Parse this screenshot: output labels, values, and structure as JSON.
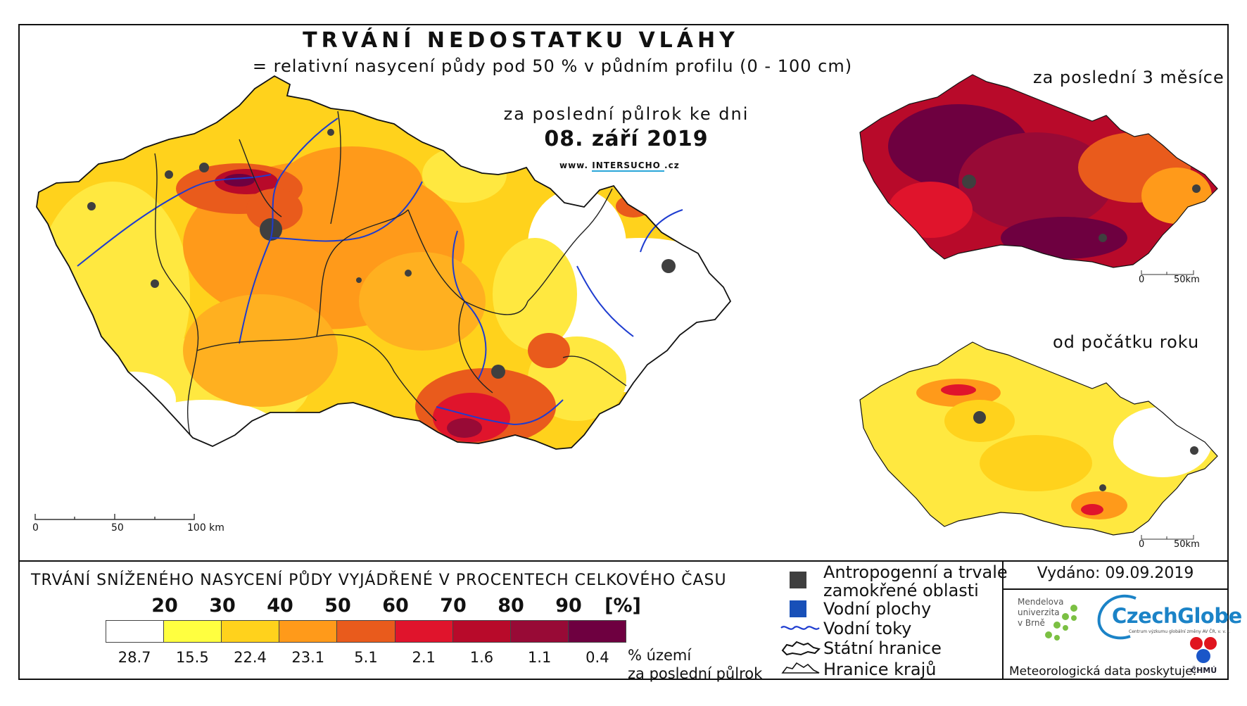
{
  "title": "TRVÁNÍ NEDOSTATKU VLÁHY",
  "subtitle": "= relativní nasycení půdy pod 50 % v půdním profilu (0 - 100 cm)",
  "main_map": {
    "period_label": "za poslední půlrok ke dni",
    "date": "08. září 2019",
    "website_prefix": "www.",
    "website_brand_a": "INTER",
    "website_brand_b": "SUCHO",
    "website_suffix": ".cz",
    "scale_labels": [
      "0",
      "50",
      "100 km"
    ]
  },
  "inset_3months": {
    "label": "za poslední 3 měsíce",
    "scale_labels": [
      "0",
      "50km"
    ]
  },
  "inset_year": {
    "label": "od počátku roku",
    "scale_labels": [
      "0",
      "50km"
    ]
  },
  "legend": {
    "title": "TRVÁNÍ SNÍŽENÉHO NASYCENÍ PŮDY VYJÁDŘENÉ V PROCENTECH CELKOVÉHO ČASU",
    "class_labels": [
      "20",
      "30",
      "40",
      "50",
      "60",
      "70",
      "80",
      "90",
      "[%]"
    ],
    "colors": [
      "#ffffff",
      "#ffff40",
      "#ffd21c",
      "#ff9a1a",
      "#e95b1c",
      "#e0142c",
      "#b80a2a",
      "#980a36",
      "#6e0040"
    ],
    "shares": [
      "28.7",
      "15.5",
      "22.4",
      "23.1",
      "5.1",
      "2.1",
      "1.6",
      "1.1",
      "0.4"
    ],
    "share_note_line1": "% území",
    "share_note_line2": "za poslední půlrok"
  },
  "key": {
    "anthropogenic_line1": "Antropogenní a trvale",
    "anthropogenic_line2": "zamokřené oblasti",
    "water_bodies": "Vodní plochy",
    "rivers": "Vodní toky",
    "state_border": "Státní hranice",
    "region_border": "Hranice krajů",
    "anthropogenic_color": "#3f3f3f",
    "water_color": "#1850b8",
    "river_color": "#1e3cd0"
  },
  "issued": "Vydáno: 09.09.2019",
  "partners": {
    "mendel_line1": "Mendelova",
    "mendel_line2": "univerzita",
    "mendel_line3": "v Brně",
    "czechglobe": "CzechGlobe",
    "czechglobe_sub": "Centrum výzkumu globální změny AV ČR, v. v. i.",
    "meteo_provider": "Meteorologická data poskytuje:",
    "chmu": "ČHMÚ"
  }
}
